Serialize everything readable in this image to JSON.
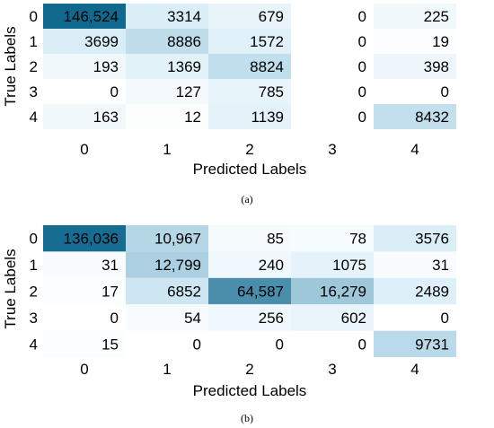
{
  "chart_data": [
    {
      "type": "heatmap",
      "caption": "(a)",
      "x_categories": [
        "0",
        "1",
        "2",
        "3",
        "4"
      ],
      "y_categories": [
        "0",
        "1",
        "2",
        "3",
        "4"
      ],
      "xlabel": "Predicted Labels",
      "ylabel": "True Labels",
      "values": [
        [
          146524,
          3314,
          679,
          0,
          225
        ],
        [
          3699,
          8886,
          1572,
          0,
          19
        ],
        [
          193,
          1369,
          8824,
          0,
          398
        ],
        [
          0,
          127,
          785,
          0,
          0
        ],
        [
          163,
          12,
          1139,
          0,
          8432
        ]
      ],
      "labels": [
        [
          "146,524",
          "3314",
          "679",
          "0",
          "225"
        ],
        [
          "3699",
          "8886",
          "1572",
          "0",
          "19"
        ],
        [
          "193",
          "1369",
          "8824",
          "0",
          "398"
        ],
        [
          "0",
          "127",
          "785",
          "0",
          "0"
        ],
        [
          "163",
          "12",
          "1139",
          "0",
          "8432"
        ]
      ],
      "colormap": [
        "#ffffff",
        "#d4ebf6",
        "#0f678d"
      ]
    },
    {
      "type": "heatmap",
      "caption": "(b)",
      "x_categories": [
        "0",
        "1",
        "2",
        "3",
        "4"
      ],
      "y_categories": [
        "0",
        "1",
        "2",
        "3",
        "4"
      ],
      "xlabel": "Predicted Labels",
      "ylabel": "True Labels",
      "values": [
        [
          136036,
          10967,
          85,
          78,
          3576
        ],
        [
          31,
          12799,
          240,
          1075,
          31
        ],
        [
          17,
          6852,
          64587,
          16279,
          2489
        ],
        [
          0,
          54,
          256,
          602,
          0
        ],
        [
          15,
          0,
          0,
          0,
          9731
        ]
      ],
      "labels": [
        [
          "136,036",
          "10,967",
          "85",
          "78",
          "3576"
        ],
        [
          "31",
          "12,799",
          "240",
          "1075",
          "31"
        ],
        [
          "17",
          "6852",
          "64,587",
          "16,279",
          "2489"
        ],
        [
          "0",
          "54",
          "256",
          "602",
          "0"
        ],
        [
          "15",
          "0",
          "0",
          "0",
          "9731"
        ]
      ],
      "colormap": [
        "#ffffff",
        "#d4ebf6",
        "#0f678d"
      ]
    }
  ]
}
